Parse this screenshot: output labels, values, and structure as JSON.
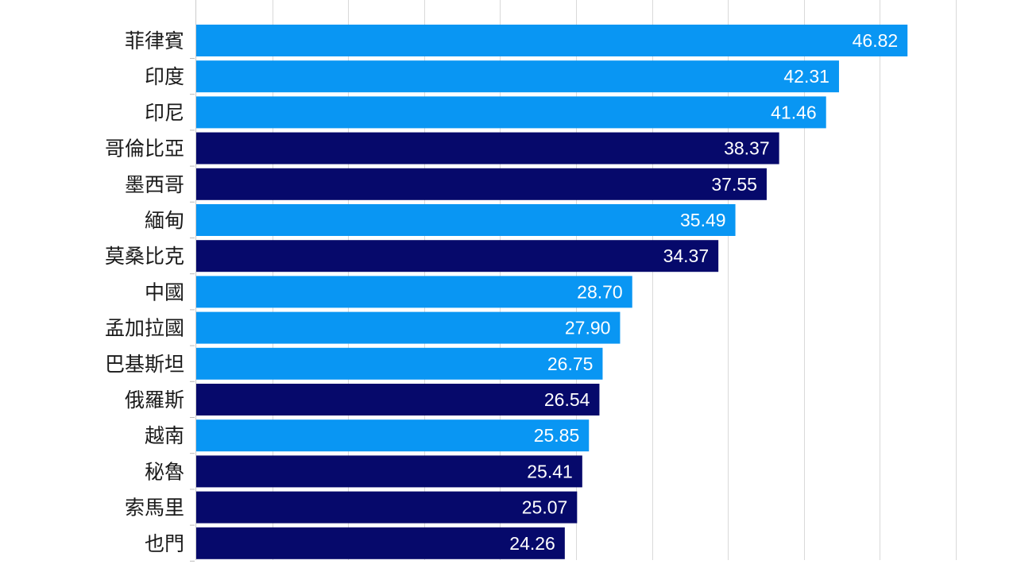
{
  "chart_data": {
    "type": "bar",
    "orientation": "horizontal",
    "categories": [
      "菲律賓",
      "印度",
      "印尼",
      "哥倫比亞",
      "墨西哥",
      "緬甸",
      "莫桑比克",
      "中國",
      "孟加拉國",
      "巴基斯坦",
      "俄羅斯",
      "越南",
      "秘魯",
      "索馬里",
      "也門"
    ],
    "values": [
      46.82,
      42.31,
      41.46,
      38.37,
      37.55,
      35.49,
      34.37,
      28.7,
      27.9,
      26.75,
      26.54,
      25.85,
      25.41,
      25.07,
      24.26
    ],
    "value_labels": [
      "46.82",
      "42.31",
      "41.46",
      "38.37",
      "37.55",
      "35.49",
      "34.37",
      "28.70",
      "27.90",
      "26.75",
      "26.54",
      "25.85",
      "25.41",
      "25.07",
      "24.26"
    ],
    "bar_groups": [
      "light",
      "light",
      "light",
      "dark",
      "dark",
      "light",
      "dark",
      "light",
      "light",
      "light",
      "dark",
      "light",
      "dark",
      "dark",
      "dark"
    ],
    "colors": {
      "light": "#0996f3",
      "dark": "#06096b",
      "grid": "#d9d9d9",
      "baseline": "#cccccc"
    },
    "xlim": [
      0,
      50
    ],
    "grid": true,
    "title": "",
    "xlabel": "",
    "ylabel": ""
  }
}
